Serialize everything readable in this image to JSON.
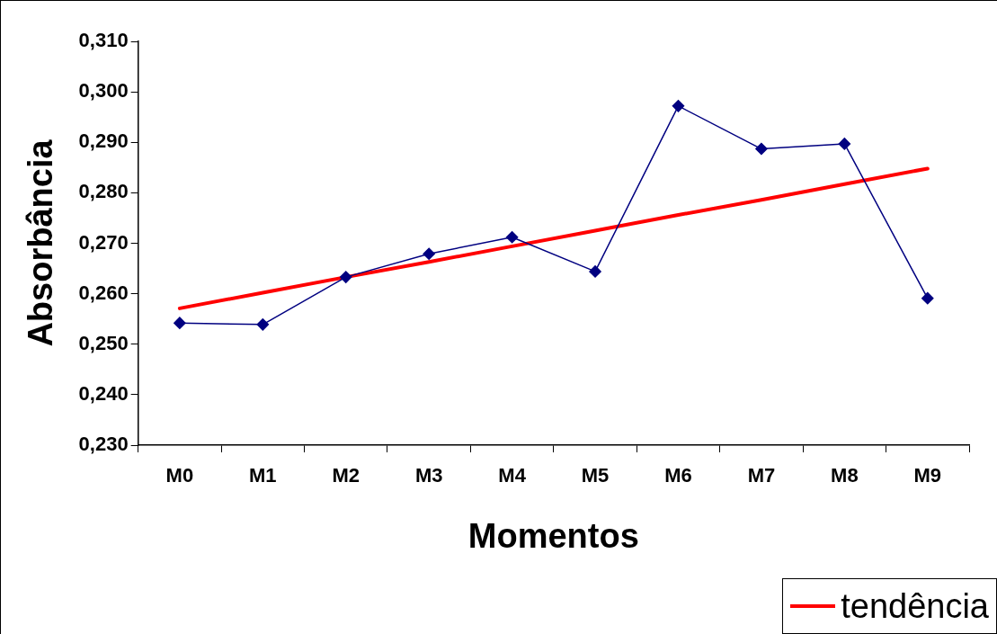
{
  "chart_data": {
    "type": "line",
    "xlabel": "Momentos",
    "ylabel": "Absorbância",
    "categories": [
      "M0",
      "M1",
      "M2",
      "M3",
      "M4",
      "M5",
      "M6",
      "M7",
      "M8",
      "M9"
    ],
    "ylim": [
      0.23,
      0.31
    ],
    "yticks": [
      {
        "value": 0.23,
        "label": "0,230"
      },
      {
        "value": 0.24,
        "label": "0,240"
      },
      {
        "value": 0.25,
        "label": "0,250"
      },
      {
        "value": 0.26,
        "label": "0,260"
      },
      {
        "value": 0.27,
        "label": "0,270"
      },
      {
        "value": 0.28,
        "label": "0,280"
      },
      {
        "value": 0.29,
        "label": "0,290"
      },
      {
        "value": 0.3,
        "label": "0,300"
      },
      {
        "value": 0.31,
        "label": "0,310"
      }
    ],
    "grid": false,
    "legend": "bottom right",
    "series": [
      {
        "color": "#000080",
        "marker": "diamond",
        "values": [
          0.2542,
          0.2539,
          0.2633,
          0.2679,
          0.2712,
          0.2644,
          0.2972,
          0.2887,
          0.2897,
          0.2591
        ]
      },
      {
        "name": "tendência",
        "color": "#ff0000",
        "marker": "none",
        "values": [
          0.2571,
          0.2602,
          0.2633,
          0.2663,
          0.2694,
          0.2725,
          0.2756,
          0.2786,
          0.2817,
          0.2848
        ]
      }
    ]
  }
}
